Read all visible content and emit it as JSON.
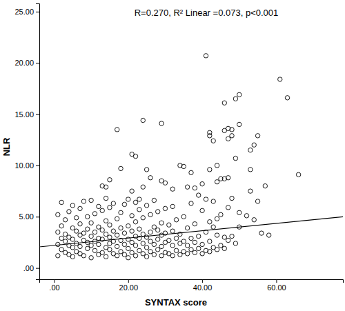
{
  "chart_data": {
    "type": "scatter",
    "x_label": "SYNTAX score",
    "y_label": "NLR",
    "annotations": [
      "R=0.270, R² Linear =0.073, p<0.001"
    ],
    "xlim": [
      -4,
      78
    ],
    "ylim": [
      -1.1,
      25.8
    ],
    "xticks": [
      {
        "value": 0,
        "label": ".00"
      },
      {
        "value": 20,
        "label": "20.00"
      },
      {
        "value": 40,
        "label": "40.00"
      },
      {
        "value": 60,
        "label": "60.00"
      }
    ],
    "yticks": [
      {
        "value": 0,
        "label": ".00"
      },
      {
        "value": 5,
        "label": "5.00"
      },
      {
        "value": 10,
        "label": "10.00"
      },
      {
        "value": 15,
        "label": "15.00"
      },
      {
        "value": 20,
        "label": "20.00"
      },
      {
        "value": 25,
        "label": "25.00"
      }
    ],
    "series": [
      {
        "type": "scatter",
        "marker": "circle",
        "color": "#000000",
        "x": [
          1,
          1,
          1,
          1,
          2,
          2,
          2,
          2,
          3,
          3,
          3,
          3,
          4,
          4,
          4,
          4,
          5,
          5,
          5,
          5,
          5,
          6,
          6,
          6,
          6,
          7,
          7,
          7,
          7,
          7,
          8,
          8,
          8,
          8,
          9,
          9,
          9,
          9,
          10,
          10,
          10,
          10,
          10,
          11,
          11,
          11,
          11,
          12,
          12,
          12,
          12,
          12,
          13,
          13,
          13,
          13,
          14,
          14,
          14,
          14,
          14,
          15,
          15,
          15,
          15,
          15,
          16,
          16,
          16,
          16,
          17,
          17,
          17,
          17,
          18,
          18,
          18,
          18,
          19,
          19,
          19,
          19,
          20,
          20,
          20,
          20,
          20,
          21,
          21,
          21,
          21,
          22,
          22,
          22,
          22,
          22,
          23,
          23,
          23,
          23,
          24,
          24,
          24,
          24,
          25,
          25,
          25,
          25,
          26,
          26,
          26,
          26,
          27,
          27,
          27,
          27,
          28,
          28,
          28,
          28,
          29,
          29,
          29,
          29,
          30,
          30,
          30,
          30,
          31,
          31,
          31,
          32,
          32,
          32,
          32,
          33,
          33,
          33,
          34,
          34,
          34,
          35,
          35,
          35,
          36,
          36,
          36,
          37,
          37,
          37,
          38,
          38,
          38,
          39,
          39,
          40,
          40,
          40,
          41,
          41,
          42,
          42,
          43,
          43,
          44,
          44,
          45,
          46,
          47,
          49,
          41,
          61,
          63,
          50,
          49,
          46,
          24,
          29,
          17,
          50,
          47,
          46,
          48,
          42,
          42,
          43,
          55,
          54,
          53,
          48,
          47,
          21,
          22,
          66,
          57,
          34,
          35,
          42,
          37,
          49,
          44,
          53,
          45,
          46,
          47,
          40,
          44,
          53,
          55,
          25,
          18,
          15,
          13,
          26,
          29,
          30,
          32,
          36,
          38,
          24,
          14,
          21,
          23,
          39,
          41,
          43,
          48,
          50,
          52,
          54,
          56,
          58,
          50,
          47,
          48,
          45,
          44,
          42,
          46
        ],
        "values": [
          1.2,
          2.3,
          3.5,
          5.2,
          1.8,
          2.9,
          4.1,
          6.4,
          1.5,
          2.6,
          3.3,
          4.7,
          1.3,
          2.2,
          3.0,
          5.5,
          1.1,
          2.0,
          2.8,
          3.9,
          6.1,
          1.6,
          2.4,
          3.6,
          4.9,
          1.4,
          2.1,
          3.2,
          4.3,
          5.8,
          1.2,
          2.7,
          3.4,
          6.5,
          1.9,
          2.5,
          3.8,
          5.0,
          1.0,
          2.2,
          3.1,
          4.4,
          6.6,
          1.7,
          2.6,
          3.5,
          5.3,
          1.3,
          2.3,
          2.9,
          4.0,
          6.0,
          1.5,
          2.8,
          3.7,
          5.6,
          1.1,
          2.0,
          3.3,
          4.6,
          6.8,
          1.8,
          2.4,
          3.0,
          4.2,
          5.9,
          1.4,
          2.6,
          3.6,
          6.3,
          1.2,
          2.1,
          3.2,
          4.8,
          1.6,
          2.7,
          3.9,
          5.4,
          1.3,
          2.3,
          3.4,
          6.2,
          1.0,
          1.9,
          2.8,
          4.1,
          6.7,
          1.5,
          2.5,
          3.6,
          5.1,
          1.2,
          2.2,
          3.1,
          4.5,
          6.4,
          1.7,
          2.9,
          3.8,
          5.7,
          1.4,
          2.4,
          3.3,
          4.9,
          1.1,
          2.0,
          3.0,
          6.1,
          1.6,
          2.6,
          3.5,
          5.2,
          1.3,
          2.3,
          4.0,
          6.6,
          1.8,
          2.8,
          3.7,
          5.5,
          1.2,
          2.1,
          3.2,
          4.4,
          1.5,
          2.5,
          3.4,
          5.8,
          1.4,
          2.7,
          4.2,
          1.2,
          2.2,
          3.6,
          6.0,
          1.7,
          2.9,
          4.7,
          1.3,
          2.4,
          3.3,
          1.6,
          2.6,
          5.0,
          1.4,
          2.2,
          3.9,
          1.8,
          2.9,
          6.3,
          1.5,
          2.5,
          4.3,
          1.9,
          3.1,
          1.4,
          2.3,
          5.6,
          1.7,
          3.5,
          1.6,
          2.6,
          2.0,
          4.0,
          1.8,
          3.2,
          2.2,
          1.9,
          5.9,
          2.4,
          20.7,
          18.4,
          16.6,
          16.9,
          16.5,
          16.1,
          14.4,
          14.1,
          13.5,
          14.0,
          13.6,
          13.4,
          13.5,
          13.2,
          12.9,
          12.4,
          12.9,
          12.0,
          11.5,
          12.9,
          12.6,
          11.1,
          10.9,
          9.1,
          8.0,
          10.0,
          9.9,
          9.6,
          9.3,
          10.7,
          10.0,
          9.6,
          8.7,
          8.7,
          8.8,
          8.2,
          8.4,
          7.5,
          6.5,
          9.6,
          9.7,
          8.6,
          8.0,
          8.8,
          8.5,
          8.3,
          7.7,
          7.9,
          7.8,
          7.9,
          7.9,
          7.5,
          6.7,
          7.1,
          6.7,
          6.5,
          6.8,
          5.4,
          5.1,
          4.7,
          3.4,
          3.2,
          4.0,
          2.7,
          3.1,
          5.2,
          4.8,
          4.5,
          3.0
        ]
      },
      {
        "type": "line",
        "line_style": "solid",
        "color": "#000000",
        "x": [
          -4,
          78
        ],
        "values": [
          2.06,
          5.0
        ]
      }
    ]
  }
}
